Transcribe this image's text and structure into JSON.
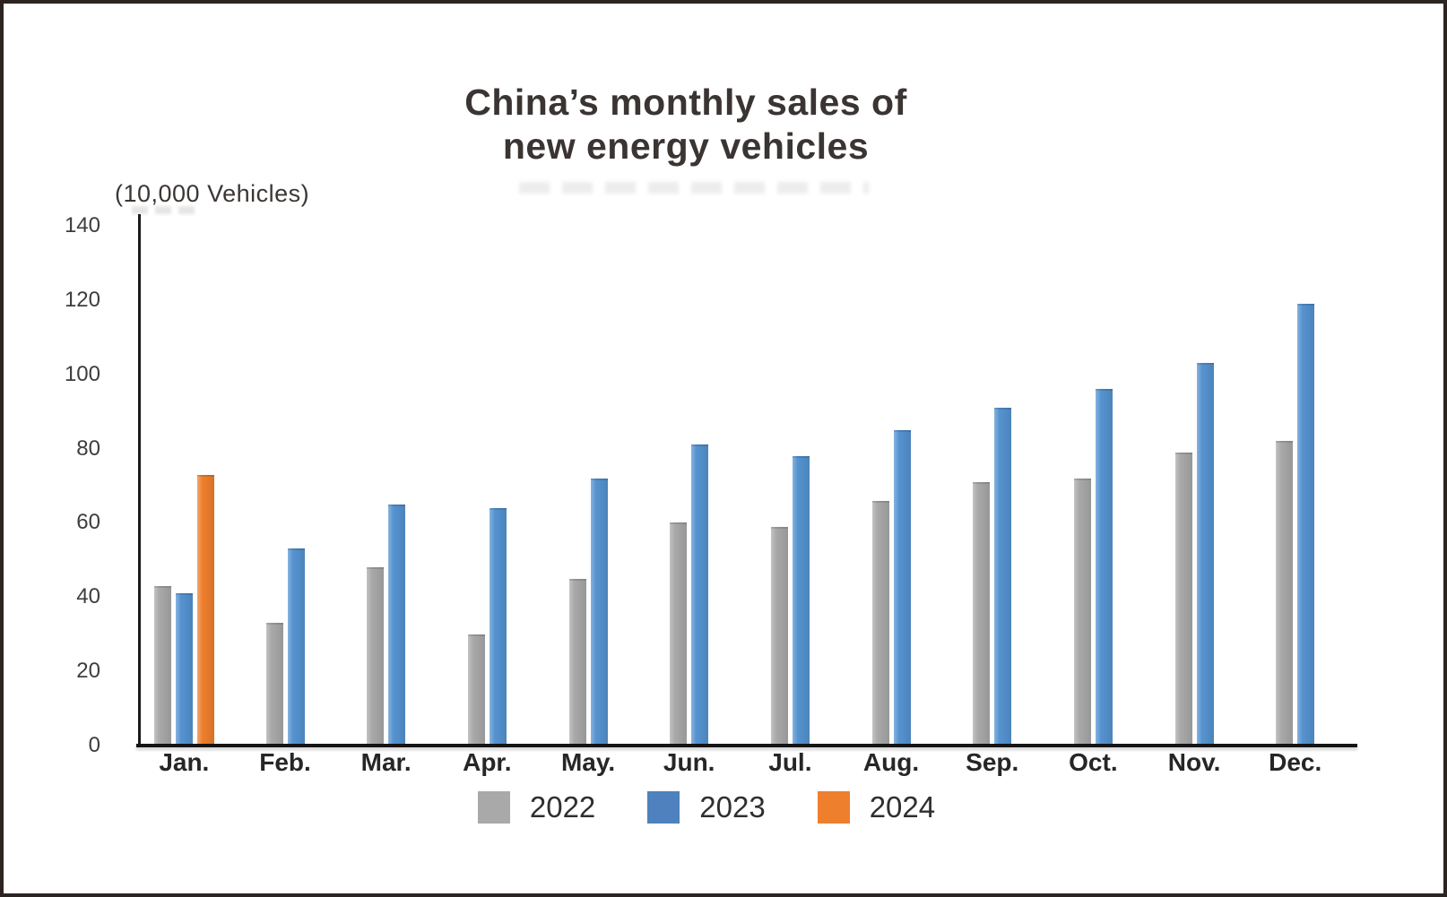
{
  "frame": {
    "border_color": "#2b2421"
  },
  "title": {
    "line1": "China’s monthly sales of",
    "line2": "new energy vehicles"
  },
  "unit_label": "(10,000 Vehicles)",
  "chart_data": {
    "type": "bar",
    "title": "China’s monthly sales of new energy vehicles",
    "ylabel": "(10,000 Vehicles)",
    "xlabel": "",
    "categories": [
      "Jan.",
      "Feb.",
      "Mar.",
      "Apr.",
      "May.",
      "Jun.",
      "Jul.",
      "Aug.",
      "Sep.",
      "Oct.",
      "Nov.",
      "Dec."
    ],
    "series": [
      {
        "name": "2022",
        "color": "#A9A9A9",
        "legend_color": "#A9A9A9",
        "values": [
          43,
          33,
          48,
          30,
          45,
          60,
          59,
          66,
          71,
          72,
          79,
          82
        ]
      },
      {
        "name": "2023",
        "color": "#5593D0",
        "legend_color": "#4E81BD",
        "values": [
          41,
          53,
          65,
          64,
          72,
          81,
          78,
          85,
          91,
          96,
          103,
          119
        ]
      },
      {
        "name": "2024",
        "color": "#EE7F2D",
        "legend_color": "#EE7F2D",
        "values": [
          73,
          null,
          null,
          null,
          null,
          null,
          null,
          null,
          null,
          null,
          null,
          null
        ]
      }
    ],
    "ylim": [
      0,
      140
    ],
    "yticks": [
      0,
      20,
      40,
      60,
      80,
      100,
      120,
      140
    ],
    "grid": false,
    "legend_position": "bottom"
  },
  "legend": {
    "items": [
      {
        "label": "2022",
        "color": "#A9A9A9"
      },
      {
        "label": "2023",
        "color": "#4E81BD"
      },
      {
        "label": "2024",
        "color": "#EE7F2D"
      }
    ]
  }
}
